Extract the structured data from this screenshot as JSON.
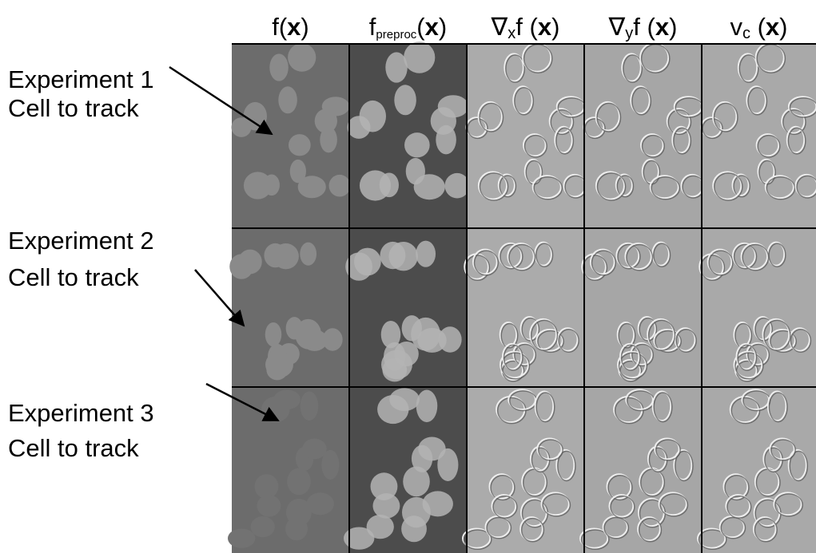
{
  "columns": [
    {
      "parts": [
        {
          "text": "f("
        },
        {
          "text": "x",
          "bold": true
        },
        {
          "text": ")"
        }
      ]
    },
    {
      "parts": [
        {
          "text": "f"
        },
        {
          "text": "preproc",
          "sub": true
        },
        {
          "text": "("
        },
        {
          "text": "x",
          "bold": true
        },
        {
          "text": ")"
        }
      ]
    },
    {
      "parts": [
        {
          "text": "∇"
        },
        {
          "text": "x",
          "sub": true
        },
        {
          "text": "f ("
        },
        {
          "text": "x",
          "bold": true
        },
        {
          "text": ")"
        }
      ]
    },
    {
      "parts": [
        {
          "text": "∇"
        },
        {
          "text": "y",
          "sub": true
        },
        {
          "text": "f ("
        },
        {
          "text": "x",
          "bold": true
        },
        {
          "text": ")"
        }
      ]
    },
    {
      "parts": [
        {
          "text": "v"
        },
        {
          "text": "c",
          "sub": true
        },
        {
          "text": " ("
        },
        {
          "text": "x",
          "bold": true
        },
        {
          "text": ")"
        }
      ]
    }
  ],
  "rows": [
    {
      "experiment": "Experiment 1",
      "caption": "Cell to track"
    },
    {
      "experiment": "Experiment 2",
      "caption": "Cell to track"
    },
    {
      "experiment": "Experiment 3",
      "caption": "Cell to track"
    }
  ]
}
